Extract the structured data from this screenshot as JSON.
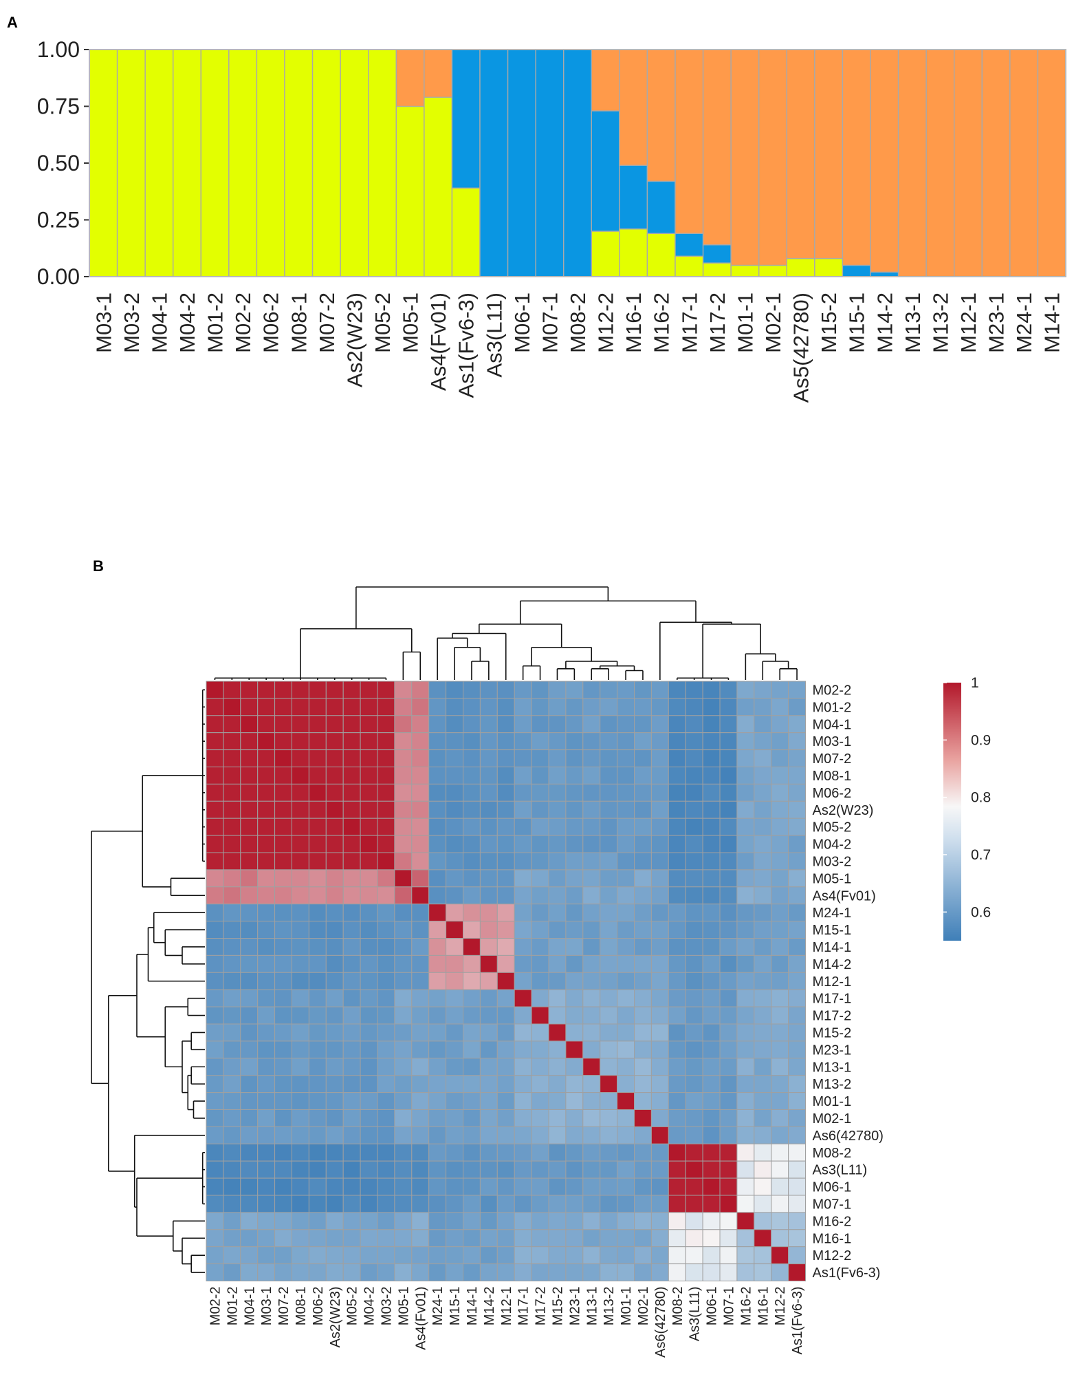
{
  "panel_a": {
    "label": "A",
    "y_ticks": [
      "1.00",
      "0.75",
      "0.50",
      "0.25",
      "0.00"
    ]
  },
  "panel_b": {
    "label": "B",
    "legend_ticks": [
      "1",
      "0.9",
      "0.8",
      "0.7",
      "0.6"
    ]
  },
  "colors": {
    "yellow": "#e3ff00",
    "blue": "#0a96e2",
    "orange": "#ff9a4a",
    "high": "#b2182b",
    "mid": "#f7f7f7",
    "low": "#3f7fb8"
  },
  "chart_data": [
    {
      "type": "bar",
      "subtype": "stacked-proportion",
      "title": "",
      "ylim": [
        0,
        1
      ],
      "categories": [
        "M03-1",
        "M03-2",
        "M04-1",
        "M04-2",
        "M01-2",
        "M02-2",
        "M06-2",
        "M08-1",
        "M07-2",
        "As2(W23)",
        "M05-2",
        "M05-1",
        "As4(Fv01)",
        "As1(Fv6-3)",
        "As3(L11)",
        "M06-1",
        "M07-1",
        "M08-2",
        "M12-2",
        "M16-1",
        "M16-2",
        "M17-1",
        "M17-2",
        "M01-1",
        "M02-1",
        "As5(42780)",
        "M15-2",
        "M15-1",
        "M14-2",
        "M13-1",
        "M13-2",
        "M12-1",
        "M23-1",
        "M24-1",
        "M14-1"
      ],
      "series": [
        {
          "name": "cluster-yellow",
          "color": "#e3ff00",
          "values": [
            1,
            1,
            1,
            1,
            1,
            1,
            1,
            1,
            1,
            1,
            1,
            0.75,
            0.79,
            0.39,
            0,
            0,
            0,
            0,
            0.2,
            0.21,
            0.19,
            0.09,
            0.06,
            0.05,
            0.05,
            0.08,
            0.08,
            0,
            0,
            0,
            0,
            0,
            0,
            0,
            0
          ]
        },
        {
          "name": "cluster-blue",
          "color": "#0a96e2",
          "values": [
            0,
            0,
            0,
            0,
            0,
            0,
            0,
            0,
            0,
            0,
            0,
            0,
            0,
            0.61,
            1,
            1,
            1,
            1,
            0.53,
            0.28,
            0.23,
            0.1,
            0.08,
            0,
            0,
            0,
            0,
            0.05,
            0.02,
            0,
            0,
            0,
            0,
            0,
            0
          ]
        },
        {
          "name": "cluster-orange",
          "color": "#ff9a4a",
          "values": [
            0,
            0,
            0,
            0,
            0,
            0,
            0,
            0,
            0,
            0,
            0,
            0.25,
            0.21,
            0,
            0,
            0,
            0,
            0,
            0.27,
            0.51,
            0.58,
            0.81,
            0.86,
            0.95,
            0.95,
            0.92,
            0.92,
            0.95,
            0.98,
            1,
            1,
            1,
            1,
            1,
            1
          ]
        }
      ]
    },
    {
      "type": "heatmap",
      "title": "",
      "row_labels": [
        "M02-2",
        "M01-2",
        "M04-1",
        "M03-1",
        "M07-2",
        "M08-1",
        "M06-2",
        "As2(W23)",
        "M05-2",
        "M04-2",
        "M03-2",
        "M05-1",
        "As4(Fv01)",
        "M24-1",
        "M15-1",
        "M14-1",
        "M14-2",
        "M12-1",
        "M17-1",
        "M17-2",
        "M15-2",
        "M23-1",
        "M13-1",
        "M13-2",
        "M01-1",
        "M02-1",
        "As6(42780)",
        "M08-2",
        "As3(L11)",
        "M06-1",
        "M07-1",
        "M16-2",
        "M16-1",
        "M12-2",
        "As1(Fv6-3)"
      ],
      "col_labels": [
        "M02-2",
        "M01-2",
        "M04-1",
        "M03-1",
        "M07-2",
        "M08-1",
        "M06-2",
        "As2(W23)",
        "M05-2",
        "M04-2",
        "M03-2",
        "M05-1",
        "As4(Fv01)",
        "M24-1",
        "M15-1",
        "M14-1",
        "M14-2",
        "M12-1",
        "M17-1",
        "M17-2",
        "M15-2",
        "M23-1",
        "M13-1",
        "M13-2",
        "M01-1",
        "M02-1",
        "As6(42780)",
        "M08-2",
        "As3(L11)",
        "M06-1",
        "M07-1",
        "M16-2",
        "M16-1",
        "M12-2",
        "As1(Fv6-3)"
      ],
      "groups": [
        0,
        0,
        0,
        0,
        0,
        0,
        0,
        0,
        0,
        0,
        0,
        1,
        1,
        2,
        2,
        2,
        2,
        2,
        3,
        3,
        3,
        3,
        3,
        3,
        3,
        3,
        3,
        4,
        4,
        4,
        4,
        5,
        5,
        5,
        5
      ],
      "group_similarity": [
        [
          0.99,
          0.88,
          0.62,
          0.64,
          0.59,
          0.66
        ],
        [
          0.88,
          0.92,
          0.63,
          0.66,
          0.6,
          0.67
        ],
        [
          0.62,
          0.63,
          0.85,
          0.65,
          0.63,
          0.65
        ],
        [
          0.64,
          0.66,
          0.65,
          0.68,
          0.64,
          0.67
        ],
        [
          0.59,
          0.6,
          0.63,
          0.64,
          0.99,
          0.77
        ],
        [
          0.66,
          0.67,
          0.65,
          0.67,
          0.77,
          0.7
        ]
      ],
      "diagonal": 1,
      "color_scale": {
        "min": 0.55,
        "max": 1,
        "legend_ticks": [
          1,
          0.9,
          0.8,
          0.7,
          0.6
        ]
      },
      "dendrograms": "top and left"
    }
  ]
}
